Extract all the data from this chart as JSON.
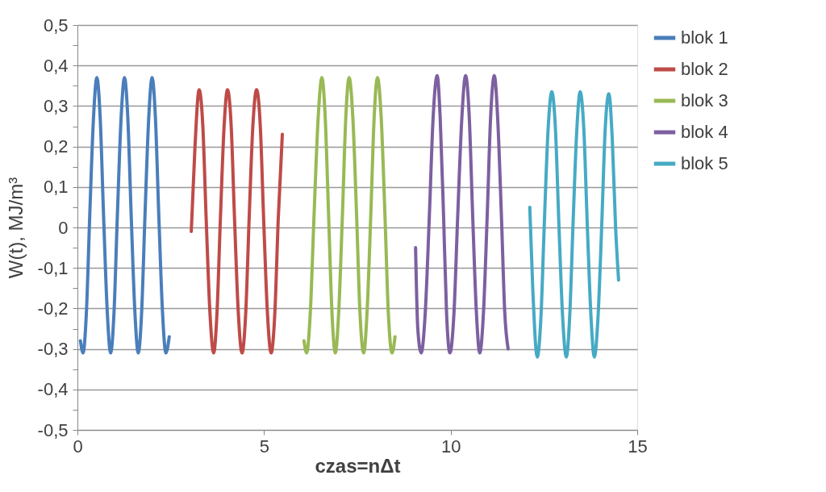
{
  "chart_data": {
    "type": "line",
    "xlabel": "czas=nΔt",
    "ylabel": "W(t), MJ/m³",
    "xlim": [
      0,
      15
    ],
    "xticks": [
      0,
      5,
      10,
      15
    ],
    "ylim": [
      -0.5,
      0.5
    ],
    "yticks": [
      {
        "value": -0.5,
        "label": "-0,5"
      },
      {
        "value": -0.45,
        "label": null
      },
      {
        "value": -0.4,
        "label": "-0,4"
      },
      {
        "value": -0.35,
        "label": null
      },
      {
        "value": -0.3,
        "label": "-0,3"
      },
      {
        "value": -0.25,
        "label": null
      },
      {
        "value": -0.2,
        "label": "-0,2"
      },
      {
        "value": -0.15,
        "label": null
      },
      {
        "value": -0.1,
        "label": "-0,1"
      },
      {
        "value": -0.05,
        "label": null
      },
      {
        "value": 0,
        "label": "0"
      },
      {
        "value": 0.05,
        "label": null
      },
      {
        "value": 0.1,
        "label": "0,1"
      },
      {
        "value": 0.15,
        "label": null
      },
      {
        "value": 0.2,
        "label": "0,2"
      },
      {
        "value": 0.25,
        "label": null
      },
      {
        "value": 0.3,
        "label": "0,3"
      },
      {
        "value": 0.35,
        "label": null
      },
      {
        "value": 0.4,
        "label": "0,4"
      },
      {
        "value": 0.45,
        "label": null
      },
      {
        "value": 0.5,
        "label": "0,5"
      }
    ],
    "grid": "y",
    "legend": "right",
    "marker": "none",
    "line_style": "solid",
    "series": [
      {
        "name": "blok 1",
        "color": "#4a7ebb",
        "x": [
          0.08,
          0.15,
          0.24,
          0.33,
          0.43,
          0.52,
          0.61,
          0.7,
          0.8,
          0.89,
          0.98,
          1.07,
          1.17,
          1.26,
          1.35,
          1.44,
          1.54,
          1.63,
          1.72,
          1.81,
          1.91,
          2.0,
          2.09,
          2.18,
          2.28,
          2.37,
          2.46
        ],
        "values": [
          -0.28,
          -0.31,
          -0.21,
          0.03,
          0.27,
          0.37,
          0.27,
          0.03,
          -0.21,
          -0.31,
          -0.21,
          0.03,
          0.27,
          0.37,
          0.27,
          0.03,
          -0.21,
          -0.31,
          -0.21,
          0.03,
          0.27,
          0.37,
          0.27,
          0.03,
          -0.21,
          -0.31,
          -0.27
        ]
      },
      {
        "name": "blok 2",
        "color": "#be4b48",
        "x": [
          3.05,
          3.15,
          3.26,
          3.36,
          3.45,
          3.55,
          3.65,
          3.74,
          3.83,
          3.93,
          4.02,
          4.12,
          4.21,
          4.31,
          4.41,
          4.51,
          4.6,
          4.7,
          4.8,
          4.9,
          4.99,
          5.09,
          5.19,
          5.29,
          5.38,
          5.49
        ],
        "values": [
          -0.01,
          0.2,
          0.34,
          0.25,
          0.02,
          -0.21,
          -0.31,
          -0.21,
          0.02,
          0.25,
          0.34,
          0.25,
          0.02,
          -0.21,
          -0.31,
          -0.21,
          0.02,
          0.25,
          0.34,
          0.25,
          0.02,
          -0.21,
          -0.31,
          -0.21,
          0.02,
          0.23
        ]
      },
      {
        "name": "blok 3",
        "color": "#98b954",
        "x": [
          6.07,
          6.14,
          6.24,
          6.34,
          6.45,
          6.55,
          6.64,
          6.73,
          6.82,
          6.91,
          7.0,
          7.1,
          7.19,
          7.28,
          7.38,
          7.48,
          7.57,
          7.67,
          7.76,
          7.86,
          7.95,
          8.04,
          8.14,
          8.24,
          8.33,
          8.43,
          8.51
        ],
        "values": [
          -0.28,
          -0.31,
          -0.21,
          0.03,
          0.27,
          0.37,
          0.27,
          0.03,
          -0.21,
          -0.31,
          -0.21,
          0.03,
          0.27,
          0.37,
          0.27,
          0.03,
          -0.21,
          -0.31,
          -0.21,
          0.03,
          0.27,
          0.37,
          0.27,
          0.03,
          -0.21,
          -0.31,
          -0.27
        ]
      },
      {
        "name": "blok 4",
        "color": "#7d60a0",
        "x": [
          9.06,
          9.12,
          9.21,
          9.32,
          9.43,
          9.53,
          9.64,
          9.72,
          9.81,
          9.89,
          9.98,
          10.09,
          10.19,
          10.3,
          10.4,
          10.5,
          10.59,
          10.69,
          10.78,
          10.88,
          10.98,
          11.07,
          11.17,
          11.26,
          11.36,
          11.45,
          11.54
        ],
        "values": [
          -0.05,
          -0.25,
          -0.31,
          -0.21,
          0.03,
          0.27,
          0.375,
          0.27,
          0.03,
          -0.21,
          -0.31,
          -0.21,
          0.03,
          0.27,
          0.375,
          0.27,
          0.03,
          -0.21,
          -0.31,
          -0.21,
          0.03,
          0.27,
          0.375,
          0.27,
          0.03,
          -0.21,
          -0.3
        ]
      },
      {
        "name": "blok 5",
        "color": "#46aac5",
        "x": [
          12.12,
          12.2,
          12.32,
          12.42,
          12.51,
          12.61,
          12.71,
          12.81,
          12.9,
          13.0,
          13.1,
          13.19,
          13.28,
          13.38,
          13.47,
          13.57,
          13.66,
          13.76,
          13.85,
          13.95,
          14.05,
          14.14,
          14.24,
          14.33,
          14.42,
          14.5
        ],
        "values": [
          0.05,
          -0.15,
          -0.32,
          -0.22,
          0.01,
          0.24,
          0.335,
          0.24,
          0.01,
          -0.22,
          -0.32,
          -0.22,
          0.01,
          0.24,
          0.335,
          0.24,
          0.01,
          -0.22,
          -0.32,
          -0.22,
          0.01,
          0.24,
          0.33,
          0.22,
          0.0,
          -0.13
        ]
      }
    ]
  }
}
